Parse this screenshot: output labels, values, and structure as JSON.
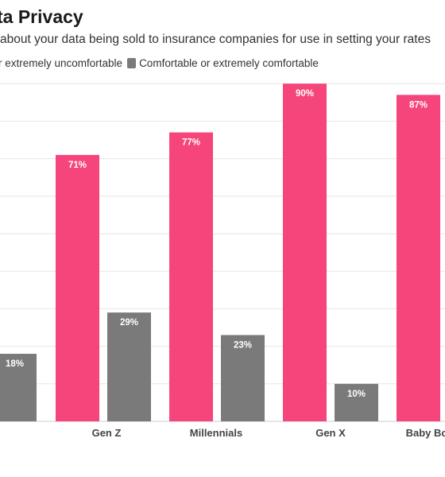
{
  "title": "ta Privacy",
  "subtitle": "about your data being sold to insurance companies for use in setting your rates",
  "legend": [
    {
      "label": "r extremely uncomfortable",
      "color": "#f5457a"
    },
    {
      "label": "Comfortable or extremely comfortable",
      "color": "#7a7a7a"
    }
  ],
  "chart_data": {
    "type": "bar",
    "categories": [
      "",
      "Gen Z",
      "Millennials",
      "Gen X",
      "Baby Bo"
    ],
    "series": [
      {
        "color": "#f5457a",
        "values": [
          null,
          71,
          77,
          90,
          87
        ]
      },
      {
        "color": "#7a7a7a",
        "values": [
          18,
          29,
          23,
          10,
          null
        ]
      }
    ],
    "value_labels": [
      [
        null,
        "71%",
        "77%",
        "90%",
        "87%"
      ],
      [
        "18%",
        "29%",
        "23%",
        "10%",
        null
      ]
    ],
    "ylim": [
      0,
      90
    ],
    "grid": true
  }
}
